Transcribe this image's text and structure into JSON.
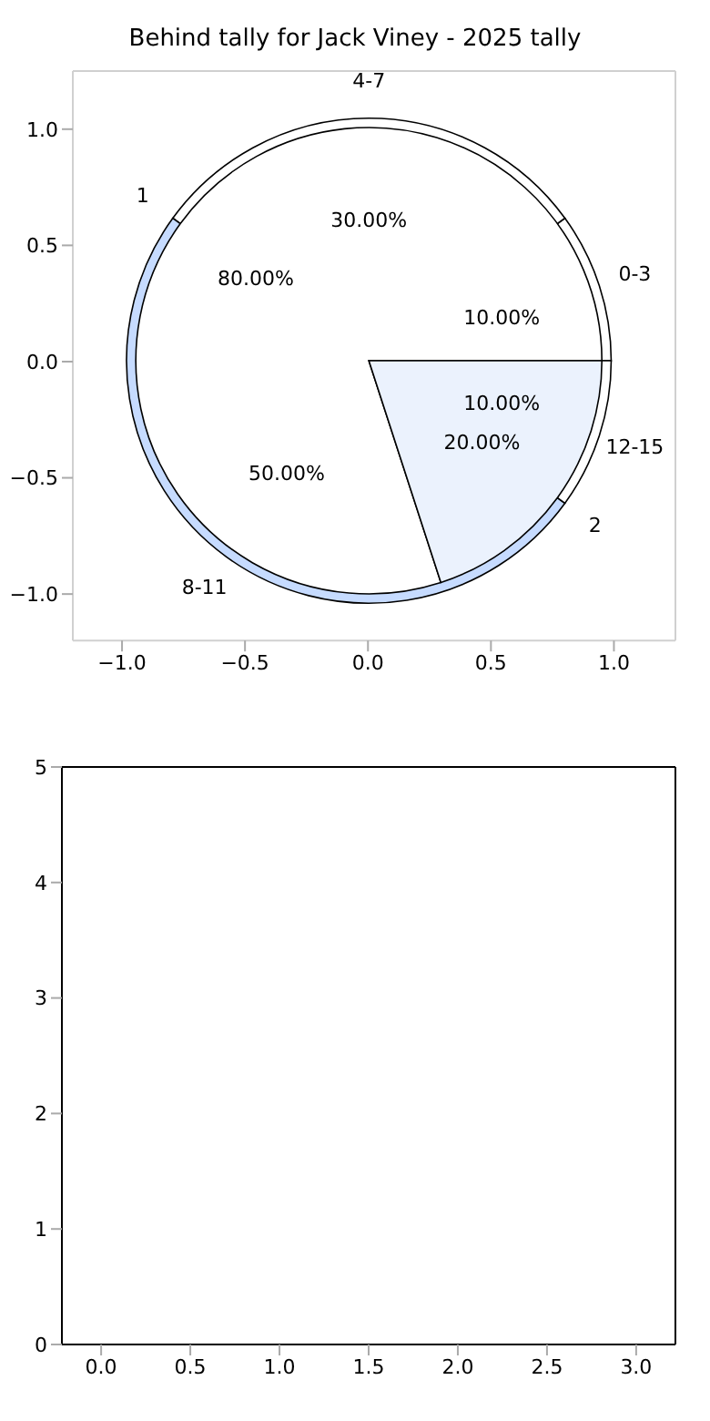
{
  "chart_data": [
    {
      "type": "scatter",
      "title": "Behind tally for Jack Viney - 2025 tally",
      "xlim": [
        -1.2,
        1.25
      ],
      "ylim": [
        -1.2,
        1.25
      ],
      "xticks": [
        {
          "value": -1,
          "label": "−1.0"
        },
        {
          "value": -0.5,
          "label": "−0.5"
        },
        {
          "value": 0,
          "label": "0.0"
        },
        {
          "value": 0.5,
          "label": "0.5"
        },
        {
          "value": 1,
          "label": "1.0"
        }
      ],
      "yticks": [
        {
          "value": -1,
          "label": "−1.0"
        },
        {
          "value": -0.5,
          "label": "−0.5"
        },
        {
          "value": 0,
          "label": "0.0"
        },
        {
          "value": 0.5,
          "label": "0.5"
        },
        {
          "value": 1,
          "label": "1.0"
        }
      ]
    },
    {
      "type": "pie",
      "categories": [
        "0-3",
        "4-7",
        "8-11",
        "12-15"
      ],
      "values": [
        10,
        30,
        50,
        10
      ],
      "colors": [
        "#ffffff",
        "#ffffff",
        "#c6dbff",
        "#ffffff"
      ],
      "value_labels": [
        "10.00%",
        "30.00%",
        "50.00%",
        "10.00%"
      ]
    },
    {
      "type": "pie",
      "categories": [
        "1",
        "2"
      ],
      "values": [
        80,
        20
      ],
      "colors": [
        "#ffffff",
        "#ebf2fd"
      ],
      "value_labels": [
        "80.00%",
        "20.00%"
      ]
    },
    {
      "type": "scatter",
      "xlim": [
        -0.22,
        3.22
      ],
      "ylim": [
        0,
        5
      ],
      "xticks": [
        {
          "value": 0,
          "label": "0.0"
        },
        {
          "value": 0.5,
          "label": "0.5"
        },
        {
          "value": 1,
          "label": "1.0"
        },
        {
          "value": 1.5,
          "label": "1.5"
        },
        {
          "value": 2,
          "label": "2.0"
        },
        {
          "value": 2.5,
          "label": "2.5"
        },
        {
          "value": 3,
          "label": "3.0"
        }
      ],
      "yticks": [
        0,
        1,
        2,
        3,
        4,
        5
      ]
    }
  ]
}
